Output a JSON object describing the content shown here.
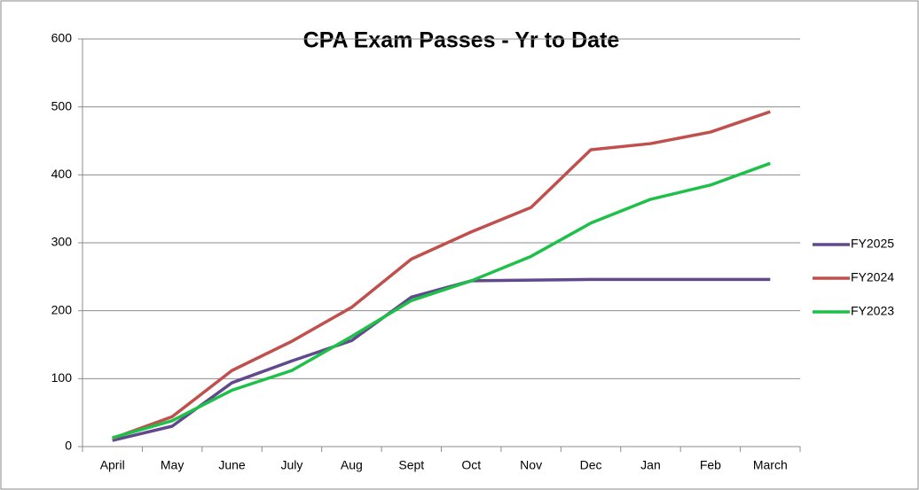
{
  "chart_data": {
    "type": "line",
    "title": "CPA Exam Passes  - Yr to Date",
    "categories": [
      "April",
      "May",
      "June",
      "July",
      "Aug",
      "Sept",
      "Oct",
      "Nov",
      "Dec",
      "Jan",
      "Feb",
      "March"
    ],
    "series": [
      {
        "name": "FY2025",
        "color": "#604a8c",
        "values": [
          9,
          30,
          94,
          126,
          156,
          220,
          244,
          245,
          246,
          246,
          246,
          246
        ]
      },
      {
        "name": "FY2024",
        "color": "#c0504d",
        "values": [
          12,
          44,
          112,
          155,
          205,
          276,
          316,
          352,
          437,
          446,
          463,
          493
        ]
      },
      {
        "name": "FY2023",
        "color": "#1fc04a",
        "values": [
          13,
          38,
          83,
          112,
          162,
          215,
          244,
          280,
          329,
          364,
          385,
          417
        ]
      }
    ],
    "ylim": [
      0,
      600
    ],
    "yticks": [
      0,
      100,
      200,
      300,
      400,
      500,
      600
    ],
    "grid": true,
    "legend": "right"
  }
}
